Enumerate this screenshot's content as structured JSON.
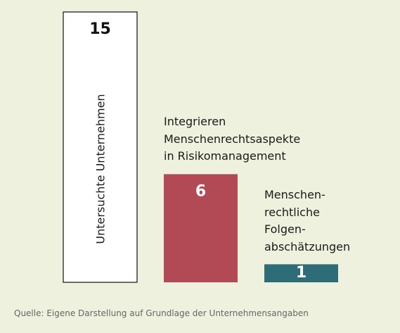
{
  "chart_data": {
    "type": "bar",
    "categories": [
      "Untersuchte Unternehmen",
      "Integrieren\nMenschenrechtsaspekte\nin Risikomanagement",
      "Menschen-\nrechtliche\nFolgen-\nabschätzungen"
    ],
    "values": [
      15,
      6,
      1
    ],
    "colors": [
      "#ffffff",
      "#b24a55",
      "#2e6c77"
    ],
    "ylim": [
      0,
      15
    ],
    "note": "Quelle: Eigene Darstellung auf Grundlage der Unternehmensangaben"
  }
}
